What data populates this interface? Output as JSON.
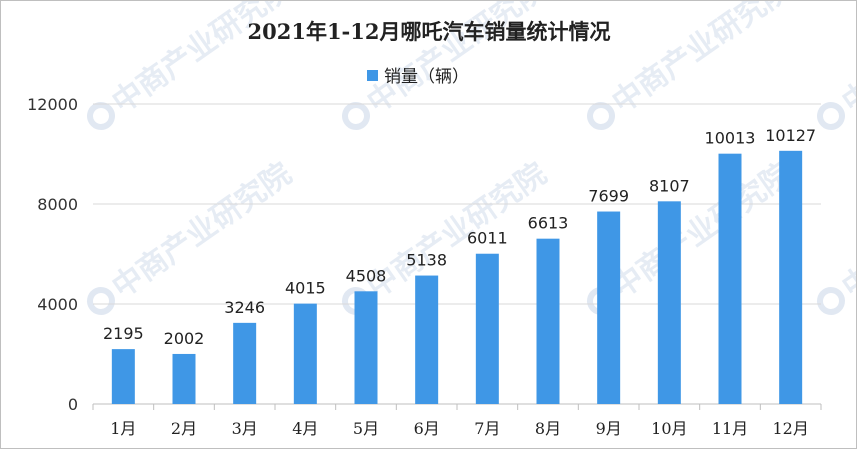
{
  "chart_data": {
    "type": "bar",
    "title": "2021年1-12月哪吒汽车销量统计情况",
    "categories": [
      "1月",
      "2月",
      "3月",
      "4月",
      "5月",
      "6月",
      "7月",
      "8月",
      "9月",
      "10月",
      "11月",
      "12月"
    ],
    "series": [
      {
        "name": "销量（辆）",
        "values": [
          2195,
          2002,
          3246,
          4015,
          4508,
          5138,
          6011,
          6613,
          7699,
          8107,
          10013,
          10127
        ]
      }
    ],
    "ylim": [
      0,
      12000
    ],
    "yticks": [
      0,
      4000,
      8000,
      12000
    ],
    "grid": true,
    "legend_position": "top",
    "bar_color": "#3f97e6",
    "grid_color": "#d9d9d9",
    "watermark": "中商产业研究院"
  }
}
